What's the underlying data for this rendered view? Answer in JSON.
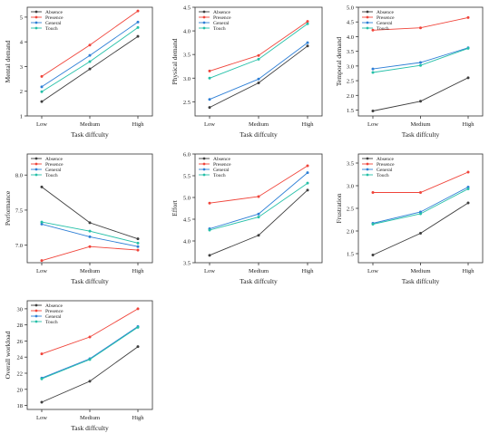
{
  "legend": {
    "items": [
      {
        "name": "Absence",
        "color": "#3d3d3d"
      },
      {
        "name": "Presence",
        "color": "#f0443a"
      },
      {
        "name": "General",
        "color": "#2e7fd6"
      },
      {
        "name": "Touch",
        "color": "#25c0a8"
      }
    ],
    "placement": "top-left"
  },
  "chart_data": [
    {
      "type": "line",
      "ylabel": "Mental demand",
      "xlabel": "Task diffculty",
      "categories": [
        "Low",
        "Medium",
        "High"
      ],
      "ylim": [
        1,
        5.4
      ],
      "yticks": [
        1,
        2,
        3,
        4,
        5
      ],
      "ytick_labels": [
        "1",
        "2",
        "3",
        "4",
        "5"
      ],
      "series": [
        {
          "name": "Absence",
          "values": [
            1.58,
            2.9,
            4.22
          ]
        },
        {
          "name": "Presence",
          "values": [
            2.6,
            3.87,
            5.25
          ]
        },
        {
          "name": "General",
          "values": [
            2.18,
            3.45,
            4.8
          ]
        },
        {
          "name": "Touch",
          "values": [
            1.98,
            3.2,
            4.58
          ]
        }
      ]
    },
    {
      "type": "line",
      "ylabel": "Physical demand",
      "xlabel": "Task diffculty",
      "categories": [
        "Low",
        "Medium",
        "High"
      ],
      "ylim": [
        2.2,
        4.5
      ],
      "yticks": [
        2.5,
        3.0,
        3.5,
        4.0,
        4.5
      ],
      "ytick_labels": [
        "2.5",
        "3.0",
        "3.5",
        "4.0",
        "4.5"
      ],
      "series": [
        {
          "name": "Absence",
          "values": [
            2.38,
            2.9,
            3.68
          ]
        },
        {
          "name": "Presence",
          "values": [
            3.15,
            3.48,
            4.2
          ]
        },
        {
          "name": "General",
          "values": [
            2.55,
            2.98,
            3.75
          ]
        },
        {
          "name": "Touch",
          "values": [
            3.0,
            3.4,
            4.15
          ]
        }
      ]
    },
    {
      "type": "line",
      "ylabel": "Temporal demand",
      "xlabel": "Task diffculty",
      "categories": [
        "Low",
        "Medium",
        "High"
      ],
      "ylim": [
        1.3,
        5.0
      ],
      "yticks": [
        1.5,
        2.0,
        2.5,
        3.0,
        3.5,
        4.0,
        4.5,
        5.0
      ],
      "ytick_labels": [
        "1.5",
        "2.0",
        "2.5",
        "3.0",
        "3.5",
        "4.0",
        "4.5",
        "5.0"
      ],
      "series": [
        {
          "name": "Absence",
          "values": [
            1.47,
            1.8,
            2.6
          ]
        },
        {
          "name": "Presence",
          "values": [
            4.22,
            4.3,
            4.65
          ]
        },
        {
          "name": "General",
          "values": [
            2.9,
            3.12,
            3.62
          ]
        },
        {
          "name": "Touch",
          "values": [
            2.78,
            3.02,
            3.6
          ]
        }
      ]
    },
    {
      "type": "line",
      "ylabel": "Performance",
      "xlabel": "Task diffculty",
      "categories": [
        "Low",
        "Medium",
        "High"
      ],
      "ylim": [
        6.75,
        8.3
      ],
      "yticks": [
        7.0,
        7.5,
        8.0
      ],
      "ytick_labels": [
        "7.0",
        "7.5",
        "8.0"
      ],
      "series": [
        {
          "name": "Absence",
          "values": [
            7.83,
            7.32,
            7.09
          ]
        },
        {
          "name": "Presence",
          "values": [
            6.78,
            6.98,
            6.93
          ]
        },
        {
          "name": "General",
          "values": [
            7.3,
            7.12,
            6.98
          ]
        },
        {
          "name": "Touch",
          "values": [
            7.33,
            7.2,
            7.03
          ]
        }
      ]
    },
    {
      "type": "line",
      "ylabel": "Effort",
      "xlabel": "Task diffculty",
      "categories": [
        "Low",
        "Medium",
        "High"
      ],
      "ylim": [
        3.5,
        6.0
      ],
      "yticks": [
        3.5,
        4.0,
        4.5,
        5.0,
        5.5,
        6.0
      ],
      "ytick_labels": [
        "3.5",
        "4.0",
        "4.5",
        "5.0",
        "5.5",
        "6.0"
      ],
      "series": [
        {
          "name": "Absence",
          "values": [
            3.67,
            4.13,
            5.17
          ]
        },
        {
          "name": "Presence",
          "values": [
            4.87,
            5.02,
            5.73
          ]
        },
        {
          "name": "General",
          "values": [
            4.28,
            4.62,
            5.57
          ]
        },
        {
          "name": "Touch",
          "values": [
            4.25,
            4.55,
            5.33
          ]
        }
      ]
    },
    {
      "type": "line",
      "ylabel": "Frustration",
      "xlabel": "Task diffculty",
      "categories": [
        "Low",
        "Medium",
        "High"
      ],
      "ylim": [
        1.3,
        3.7
      ],
      "yticks": [
        1.5,
        2.0,
        2.5,
        3.0,
        3.5
      ],
      "ytick_labels": [
        "1.5",
        "2.0",
        "2.5",
        "3.0",
        "3.5"
      ],
      "series": [
        {
          "name": "Absence",
          "values": [
            1.47,
            1.95,
            2.62
          ]
        },
        {
          "name": "Presence",
          "values": [
            2.85,
            2.85,
            3.3
          ]
        },
        {
          "name": "General",
          "values": [
            2.17,
            2.42,
            2.97
          ]
        },
        {
          "name": "Touch",
          "values": [
            2.15,
            2.38,
            2.93
          ]
        }
      ]
    },
    {
      "type": "line",
      "ylabel": "Overall workload",
      "xlabel": "Task diffculty",
      "categories": [
        "Low",
        "Medium",
        "High"
      ],
      "ylim": [
        17.5,
        31
      ],
      "yticks": [
        18,
        20,
        22,
        24,
        26,
        28,
        30
      ],
      "ytick_labels": [
        "18",
        "20",
        "22",
        "24",
        "26",
        "28",
        "30"
      ],
      "series": [
        {
          "name": "Absence",
          "values": [
            18.4,
            21.0,
            25.3
          ]
        },
        {
          "name": "Presence",
          "values": [
            24.4,
            26.5,
            30.0
          ]
        },
        {
          "name": "General",
          "values": [
            21.4,
            23.8,
            27.8
          ]
        },
        {
          "name": "Touch",
          "values": [
            21.3,
            23.7,
            27.7
          ]
        }
      ]
    }
  ]
}
